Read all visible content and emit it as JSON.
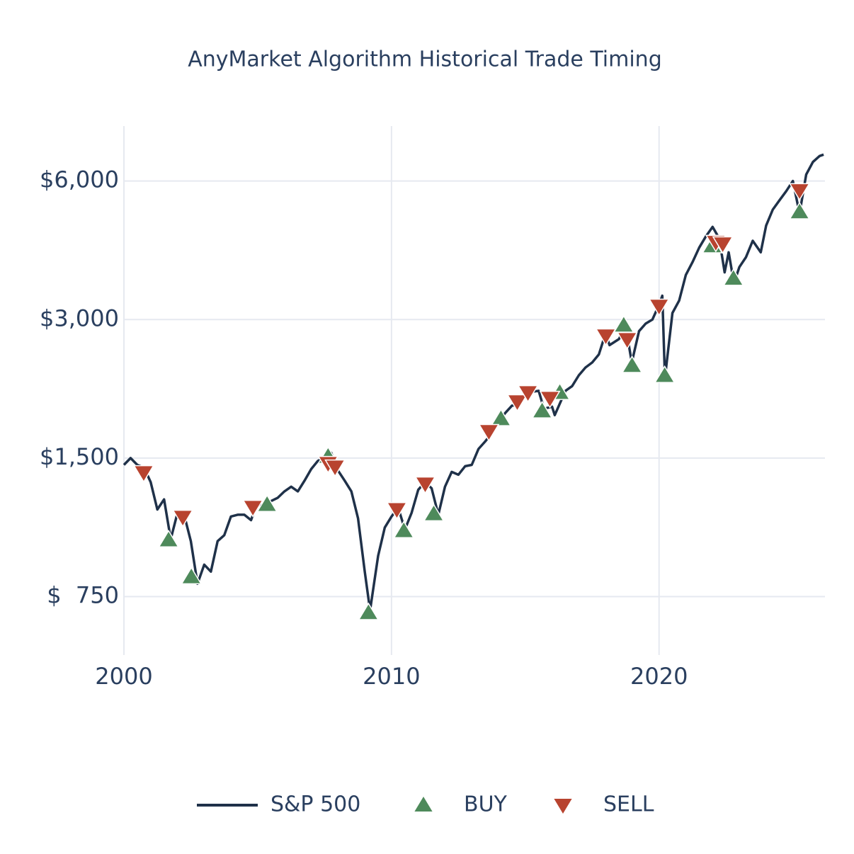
{
  "chart_data": {
    "type": "line",
    "title": "AnyMarket Algorithm Historical Trade Timing",
    "log_y": true,
    "grid": true,
    "legend": "bottom",
    "xlim": [
      2000,
      2026.2
    ],
    "xticks": [
      2000,
      2010,
      2020
    ],
    "ylim": [
      560,
      7900
    ],
    "yticks": [
      {
        "value": 750,
        "label": "$  750"
      },
      {
        "value": 1500,
        "label": "$1,500"
      },
      {
        "value": 3000,
        "label": "$3,000"
      },
      {
        "value": 6000,
        "label": "$6,000"
      }
    ],
    "series": [
      {
        "name": "S&P 500",
        "kind": "line",
        "color": "#1f3149",
        "x": [
          2000.0,
          2000.25,
          2000.5,
          2000.75,
          2001.0,
          2001.25,
          2001.5,
          2001.75,
          2002.0,
          2002.25,
          2002.5,
          2002.75,
          2003.0,
          2003.25,
          2003.5,
          2003.75,
          2004.0,
          2004.25,
          2004.5,
          2004.75,
          2005.0,
          2005.25,
          2005.5,
          2005.75,
          2006.0,
          2006.25,
          2006.5,
          2006.75,
          2007.0,
          2007.25,
          2007.5,
          2007.75,
          2008.0,
          2008.25,
          2008.5,
          2008.75,
          2009.0,
          2009.2,
          2009.5,
          2009.75,
          2010.0,
          2010.25,
          2010.5,
          2010.75,
          2011.0,
          2011.25,
          2011.5,
          2011.75,
          2012.0,
          2012.25,
          2012.5,
          2012.75,
          2013.0,
          2013.25,
          2013.5,
          2013.75,
          2014.0,
          2014.25,
          2014.5,
          2014.75,
          2015.0,
          2015.25,
          2015.5,
          2015.7,
          2016.0,
          2016.1,
          2016.5,
          2016.75,
          2017.0,
          2017.25,
          2017.5,
          2017.75,
          2018.0,
          2018.15,
          2018.5,
          2018.75,
          2018.98,
          2019.25,
          2019.5,
          2019.75,
          2020.0,
          2020.12,
          2020.22,
          2020.5,
          2020.75,
          2021.0,
          2021.25,
          2021.5,
          2021.75,
          2022.0,
          2022.25,
          2022.45,
          2022.6,
          2022.8,
          2023.0,
          2023.25,
          2023.5,
          2023.8,
          2024.0,
          2024.25,
          2024.5,
          2024.75,
          2025.0,
          2025.25,
          2025.5,
          2025.75,
          2026.0,
          2026.15
        ],
        "values": [
          1450,
          1500,
          1450,
          1430,
          1330,
          1160,
          1220,
          1000,
          1140,
          1130,
          990,
          800,
          880,
          850,
          990,
          1020,
          1120,
          1130,
          1130,
          1100,
          1200,
          1170,
          1210,
          1230,
          1270,
          1300,
          1270,
          1340,
          1420,
          1480,
          1500,
          1540,
          1410,
          1340,
          1270,
          1110,
          850,
          700,
          920,
          1060,
          1120,
          1170,
          1050,
          1140,
          1280,
          1330,
          1290,
          1130,
          1300,
          1400,
          1380,
          1440,
          1450,
          1570,
          1630,
          1700,
          1800,
          1880,
          1950,
          1960,
          2050,
          2090,
          2100,
          1920,
          1940,
          1860,
          2100,
          2150,
          2270,
          2360,
          2420,
          2520,
          2800,
          2640,
          2720,
          2900,
          2420,
          2830,
          2940,
          3000,
          3230,
          3380,
          2240,
          3100,
          3300,
          3750,
          4000,
          4300,
          4550,
          4770,
          4500,
          3800,
          4200,
          3600,
          3900,
          4100,
          4450,
          4200,
          4800,
          5200,
          5450,
          5700,
          6000,
          5100,
          6200,
          6600,
          6800,
          6850
        ]
      },
      {
        "name": "BUY",
        "kind": "marker-up",
        "color": "#4e8a5b",
        "x": [
          2001.67,
          2002.52,
          2005.35,
          2007.63,
          2009.14,
          2010.46,
          2011.58,
          2014.09,
          2015.63,
          2016.29,
          2018.68,
          2018.99,
          2020.21,
          2021.99,
          2022.78,
          2025.25
        ],
        "values": [
          996,
          828,
          1189,
          1513,
          692,
          1043,
          1135,
          1826,
          1899,
          2082,
          2916,
          2383,
          2267,
          4338,
          3686,
          5142
        ]
      },
      {
        "name": "SELL",
        "kind": "marker-down",
        "color": "#b8432f",
        "x": [
          2000.74,
          2002.2,
          2004.82,
          2007.63,
          2007.89,
          2010.2,
          2011.26,
          2013.64,
          2014.7,
          2015.1,
          2015.92,
          2018.01,
          2018.81,
          2020.0,
          2022.12,
          2022.38,
          2025.25
        ],
        "values": [
          1395,
          1116,
          1173,
          1461,
          1435,
          1160,
          1318,
          1714,
          1989,
          2082,
          2024,
          2765,
          2716,
          3209,
          4417,
          4384,
          5720
        ]
      }
    ]
  }
}
